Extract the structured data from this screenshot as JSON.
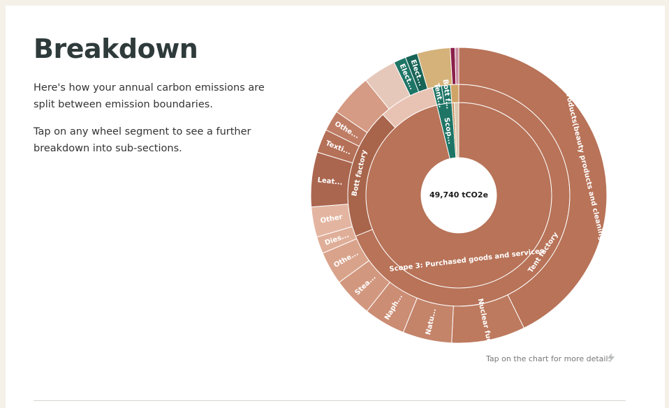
{
  "page": {
    "title": "Breakdown",
    "intro_1": "Here's how your annual carbon emissions are split between emission boundaries.",
    "intro_2": "Tap on any wheel segment to see a further breakdown into sub-sections.",
    "hint": "Tap on the chart for more detail.",
    "hint_icon": "lightning-icon"
  },
  "chart_data": {
    "type": "sunburst",
    "center_label": "49,740 tCO2e",
    "rings": [
      {
        "level": 1,
        "segments": [
          {
            "label": "Scope 3: Purchased goods and services",
            "share": 0.962,
            "color": "#b87358"
          },
          {
            "label": "Scop...",
            "share": 0.026,
            "color": "#1e7566"
          },
          {
            "label": "",
            "share": 0.004,
            "color": "#c6935c"
          },
          {
            "label": "",
            "share": 0.008,
            "color": "#dcc8b0"
          }
        ]
      },
      {
        "level": 2,
        "segments": [
          {
            "label": "Tent factory",
            "share": 0.69,
            "color": "#b87358"
          },
          {
            "label": "Bott factory",
            "share": 0.19,
            "color": "#a8654b"
          },
          {
            "label": "",
            "share": 0.082,
            "color": "#e8c3b3"
          },
          {
            "label": "Tent...",
            "share": 0.013,
            "color": "#1e7566"
          },
          {
            "label": "Bott f...",
            "share": 0.013,
            "color": "#1e7566"
          },
          {
            "label": "",
            "share": 0.012,
            "color": "#d0a466"
          }
        ]
      },
      {
        "level": 3,
        "segments": [
          {
            "label": "Chemical products(beauty products and cleaning products)",
            "share": 0.415,
            "color": "#b87358"
          },
          {
            "label": "Nuclear fuel",
            "share": 0.078,
            "color": "#bd7a5f"
          },
          {
            "label": "Natu...",
            "share": 0.052,
            "color": "#c4846a"
          },
          {
            "label": "Naph...",
            "share": 0.044,
            "color": "#cb8d74"
          },
          {
            "label": "Stea...",
            "share": 0.042,
            "color": "#d2987f"
          },
          {
            "label": "Othe...",
            "share": 0.035,
            "color": "#d9a38b"
          },
          {
            "label": "Dies...",
            "share": 0.018,
            "color": "#dfae98"
          },
          {
            "label": "Other",
            "share": 0.032,
            "color": "#e3b5a1"
          },
          {
            "label": "Leat...",
            "share": 0.058,
            "color": "#ab6650"
          },
          {
            "label": "Texti...",
            "share": 0.025,
            "color": "#b57058"
          },
          {
            "label": "Othe...",
            "share": 0.022,
            "color": "#bf7d65"
          },
          {
            "label": "",
            "share": 0.045,
            "color": "#d59b84"
          },
          {
            "label": "",
            "share": 0.035,
            "color": "#e6c8bb"
          },
          {
            "label": "Elect...",
            "share": 0.013,
            "color": "#1e7566"
          },
          {
            "label": "Elect...",
            "share": 0.013,
            "color": "#176456"
          },
          {
            "label": "",
            "share": 0.035,
            "color": "#d4b27a"
          },
          {
            "label": "",
            "share": 0.005,
            "color": "#8b1f4a"
          },
          {
            "label": "",
            "share": 0.004,
            "color": "#c98da0"
          }
        ]
      }
    ]
  }
}
